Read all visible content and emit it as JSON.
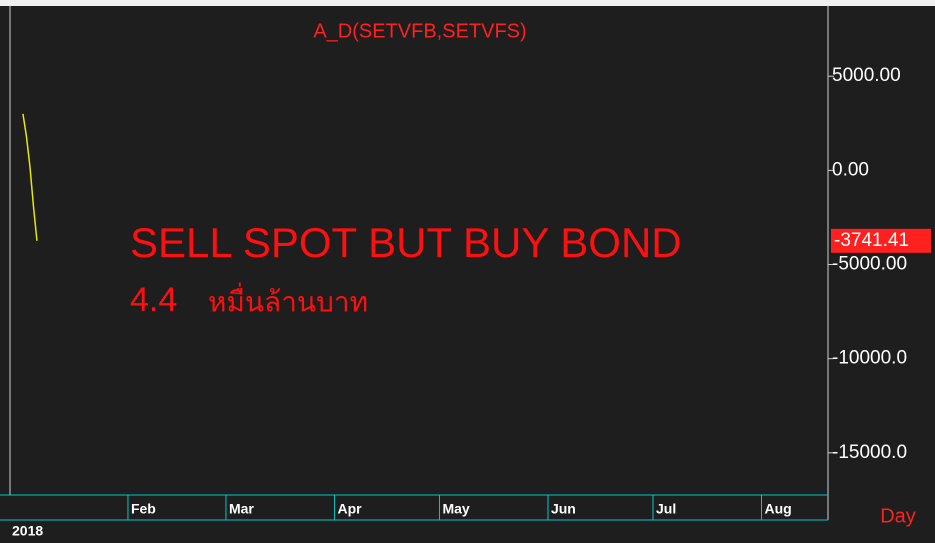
{
  "chart_data": {
    "type": "line",
    "title": "A_D(SETVFB,SETVFS)",
    "annotations": [
      "SELL SPOT BUT BUY BOND",
      "4.4",
      "หมื่นล้านบาท"
    ],
    "x_unit_label": "Day",
    "year_label": "2018",
    "x": [
      1,
      2,
      3,
      4,
      5
    ],
    "series": [
      {
        "name": "A_D(SETVFB,SETVFS)",
        "color": "#e8e800",
        "values": [
          3000,
          1800,
          200,
          -1900,
          -3741.41
        ],
        "value_labels": [
          null,
          null,
          null,
          null,
          "-3741.41"
        ]
      }
    ],
    "xlim": [
      -2.7,
      231
    ],
    "xticks": [
      {
        "value": 31,
        "label": "Feb"
      },
      {
        "value": 59,
        "label": "Mar"
      },
      {
        "value": 90,
        "label": "Apr"
      },
      {
        "value": 120,
        "label": "May"
      },
      {
        "value": 151,
        "label": "Jun"
      },
      {
        "value": 181,
        "label": "Jul"
      },
      {
        "value": 212,
        "label": "Aug"
      }
    ],
    "ylim": [
      -17240,
      8730
    ],
    "yticks": [
      {
        "value": 5000,
        "label": "5000.00"
      },
      {
        "value": 0,
        "label": "0.00"
      },
      {
        "value": -5000,
        "label": "-5000.00"
      },
      {
        "value": -10000,
        "label": "-10000.0"
      },
      {
        "value": -15000,
        "label": "-15000.0"
      }
    ],
    "grid": false
  }
}
